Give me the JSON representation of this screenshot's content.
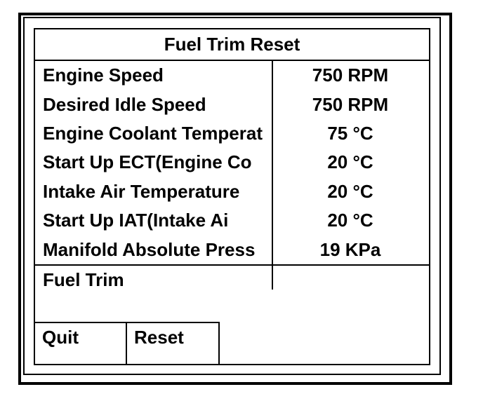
{
  "title": "Fuel Trim Reset",
  "parameters": [
    {
      "label": "Engine Speed",
      "value": "750 RPM"
    },
    {
      "label": "Desired Idle Speed",
      "value": "750 RPM"
    },
    {
      "label": "Engine Coolant Temperat",
      "value": "75 °C"
    },
    {
      "label": "Start Up ECT(Engine Co",
      "value": "20 °C"
    },
    {
      "label": "Intake Air Temperature",
      "value": "20 °C"
    },
    {
      "label": "Start Up IAT(Intake Ai",
      "value": "20 °C"
    },
    {
      "label": "Manifold Absolute Press",
      "value": "19 KPa"
    }
  ],
  "fuel_trim": {
    "label": "Fuel Trim",
    "value": ""
  },
  "softkeys": {
    "quit": "Quit",
    "reset": "Reset"
  },
  "colors": {
    "foreground": "#000000",
    "background": "#ffffff"
  }
}
